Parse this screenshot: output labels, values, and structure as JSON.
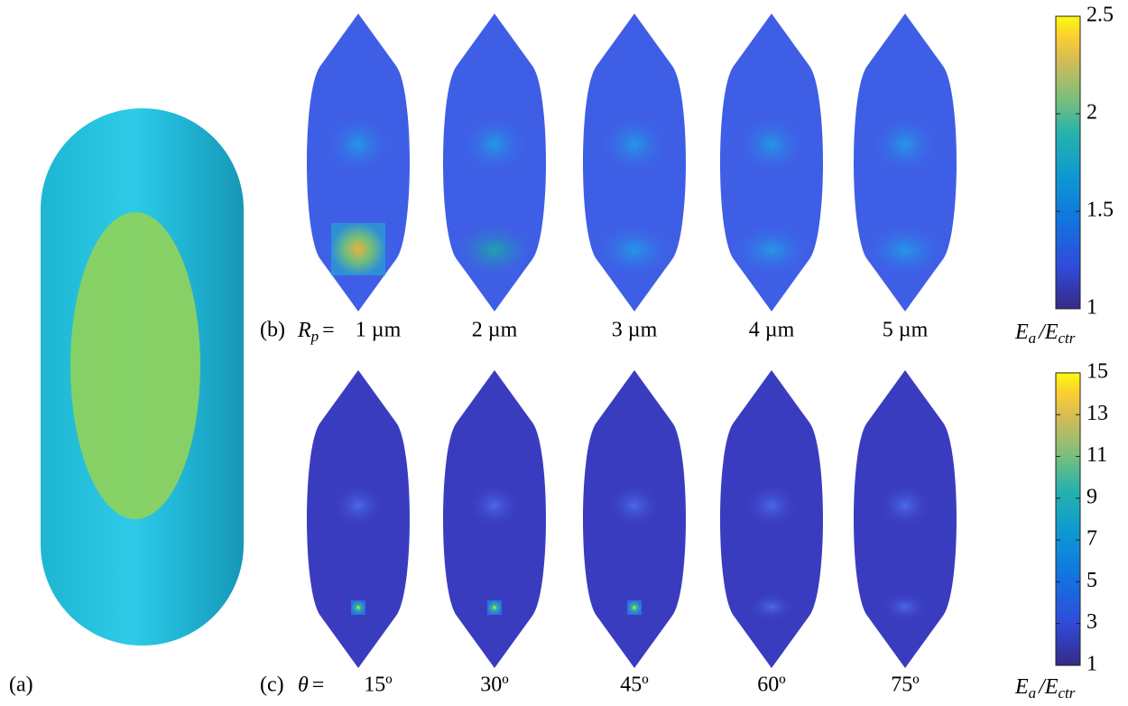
{
  "panel_a": {
    "label": "(a)"
  },
  "panel_b": {
    "label": "(b)",
    "symbol": "R",
    "subscript": "p",
    "relation": "=",
    "captions": [
      "1 µm",
      "2 µm",
      "3 µm",
      "4 µm",
      "5 µm"
    ],
    "colorbar": {
      "lim": [
        1,
        2.5
      ],
      "ticks": [
        1,
        1.5,
        2,
        2.5
      ],
      "label": {
        "symbol": "E",
        "subscript": "a",
        "separator": "/E",
        "subscript2": "ctr"
      }
    }
  },
  "panel_c": {
    "label": "(c)",
    "symbol": "θ",
    "relation": "=",
    "captions": [
      "15º",
      "30º",
      "45º",
      "60º",
      "75º"
    ],
    "colorbar": {
      "lim": [
        1,
        15
      ],
      "ticks": [
        1,
        3,
        5,
        7,
        9,
        11,
        13,
        15
      ],
      "label": {
        "symbol": "E",
        "subscript": "a",
        "separator": "/E",
        "subscript2": "ctr"
      }
    }
  }
}
